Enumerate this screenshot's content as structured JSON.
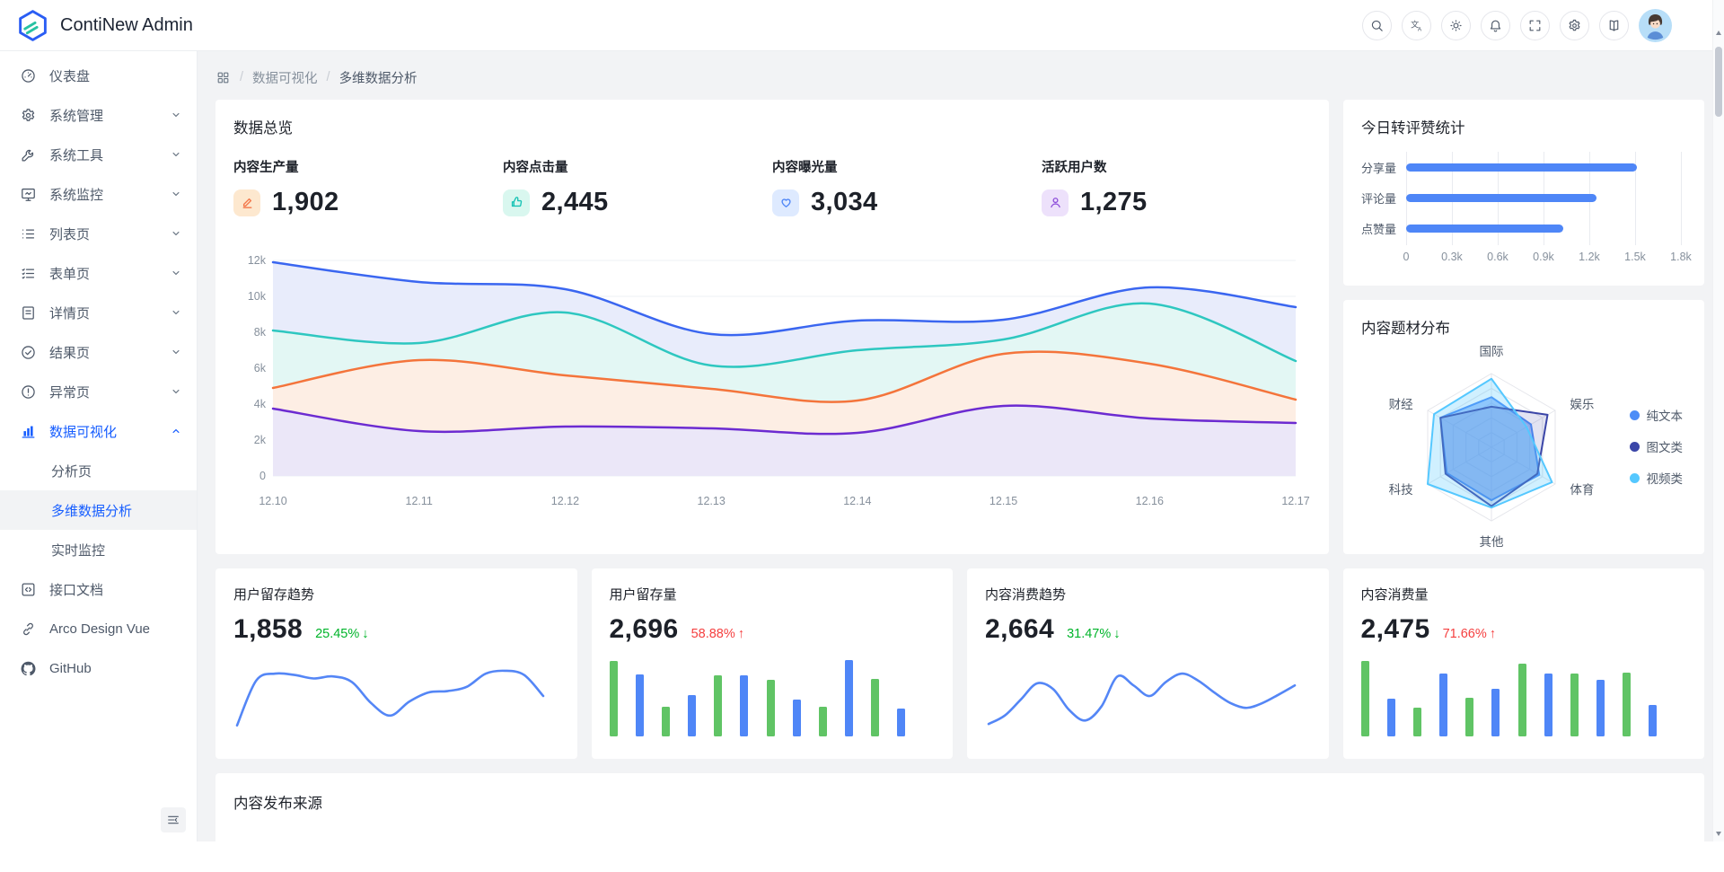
{
  "app": {
    "title": "ContiNew Admin"
  },
  "header": {
    "icons": [
      "search-icon",
      "translate-icon",
      "theme-icon",
      "notifications-icon",
      "fullscreen-icon",
      "settings-icon",
      "docs-icon"
    ]
  },
  "breadcrumb": {
    "icon": "apps-icon",
    "items": [
      "数据可视化",
      "多维数据分析"
    ]
  },
  "sidebar": {
    "items": [
      {
        "key": "dashboard",
        "label": "仪表盘",
        "icon": "dashboard-icon",
        "expandable": false
      },
      {
        "key": "system-management",
        "label": "系统管理",
        "icon": "settings-icon",
        "expandable": true
      },
      {
        "key": "system-tools",
        "label": "系统工具",
        "icon": "tool-icon",
        "expandable": true
      },
      {
        "key": "system-monitor",
        "label": "系统监控",
        "icon": "monitor-icon",
        "expandable": true
      },
      {
        "key": "list-pages",
        "label": "列表页",
        "icon": "list-icon",
        "expandable": true
      },
      {
        "key": "form-pages",
        "label": "表单页",
        "icon": "form-icon",
        "expandable": true
      },
      {
        "key": "detail-pages",
        "label": "详情页",
        "icon": "detail-icon",
        "expandable": true
      },
      {
        "key": "result-pages",
        "label": "结果页",
        "icon": "result-icon",
        "expandable": true
      },
      {
        "key": "exception-pages",
        "label": "异常页",
        "icon": "exception-icon",
        "expandable": true
      },
      {
        "key": "data-visualization",
        "label": "数据可视化",
        "icon": "chart-icon",
        "expandable": true,
        "expanded": true,
        "active": true,
        "children": [
          {
            "key": "analysis",
            "label": "分析页",
            "active": false
          },
          {
            "key": "multi-dimension",
            "label": "多维数据分析",
            "active": true
          },
          {
            "key": "realtime-monitor",
            "label": "实时监控",
            "active": false
          }
        ]
      },
      {
        "key": "api-docs",
        "label": "接口文档",
        "icon": "api-icon",
        "expandable": false
      },
      {
        "key": "arco-design-vue",
        "label": "Arco Design Vue",
        "icon": "link-icon",
        "expandable": false
      },
      {
        "key": "github",
        "label": "GitHub",
        "icon": "github-icon",
        "expandable": false
      }
    ]
  },
  "overview": {
    "title": "数据总览",
    "stats": [
      {
        "label": "内容生产量",
        "value": "1,902",
        "icon": "edit-icon",
        "icon_color": "#f3774b",
        "icon_bg": "#fde8cf"
      },
      {
        "label": "内容点击量",
        "value": "2,445",
        "icon": "thumb-up-icon",
        "icon_color": "#17c3b5",
        "icon_bg": "#d9f7ef"
      },
      {
        "label": "内容曝光量",
        "value": "3,034",
        "icon": "heart-icon",
        "icon_color": "#4e86f7",
        "icon_bg": "#deeaff"
      },
      {
        "label": "活跃用户数",
        "value": "1,275",
        "icon": "user-icon",
        "icon_color": "#8d4eda",
        "icon_bg": "#ede1fb"
      }
    ]
  },
  "trend_cards": [
    {
      "title": "用户留存趋势",
      "value": "1,858",
      "delta": "25.45%",
      "arrow": "↓",
      "delta_color": "#00b42a",
      "spark": "retention-trend"
    },
    {
      "title": "用户留存量",
      "value": "2,696",
      "delta": "58.88%",
      "arrow": "↑",
      "delta_color": "#f53f3f",
      "spark": "retention-volume"
    },
    {
      "title": "内容消费趋势",
      "value": "2,664",
      "delta": "31.47%",
      "arrow": "↓",
      "delta_color": "#00b42a",
      "spark": "consumption-trend"
    },
    {
      "title": "内容消费量",
      "value": "2,475",
      "delta": "71.66%",
      "arrow": "↑",
      "delta_color": "#f53f3f",
      "spark": "consumption-volume"
    }
  ],
  "bottom_card": {
    "title": "内容发布来源"
  },
  "chart_data": [
    {
      "id": "overview-area",
      "type": "area",
      "x": [
        "12.10",
        "12.11",
        "12.12",
        "12.13",
        "12.14",
        "12.15",
        "12.16",
        "12.17"
      ],
      "ylim": [
        0,
        12000
      ],
      "yticks": [
        "12k",
        "10k",
        "8k",
        "6k",
        "4k",
        "2k",
        "0"
      ],
      "grid": true,
      "legend_position": "none",
      "series": [
        {
          "name": "series-blue",
          "color": "#3a66f0",
          "fill": "#e8ecfb",
          "values": [
            11900,
            10800,
            10400,
            7900,
            8650,
            8700,
            10500,
            9400
          ]
        },
        {
          "name": "series-teal",
          "color": "#2ec7c0",
          "fill": "#e3f7f4",
          "values": [
            8100,
            7400,
            9100,
            6150,
            7000,
            7600,
            9600,
            6400
          ]
        },
        {
          "name": "series-orange",
          "color": "#f4743b",
          "fill": "#fdeee4",
          "values": [
            4900,
            6450,
            5600,
            4850,
            4200,
            6800,
            6250,
            4250
          ]
        },
        {
          "name": "series-purple",
          "color": "#6c2bd1",
          "fill": "#ebe7f8",
          "values": [
            3750,
            2500,
            2750,
            2650,
            2400,
            3900,
            3200,
            2950
          ]
        }
      ]
    },
    {
      "id": "daily-share-bar",
      "type": "bar",
      "title": "今日转评赞统计",
      "orientation": "horizontal",
      "categories": [
        "分享量",
        "评论量",
        "点赞量"
      ],
      "values": [
        1510,
        1245,
        1030
      ],
      "xlim": [
        0,
        1800
      ],
      "xticks": [
        "0",
        "0.3k",
        "0.6k",
        "0.9k",
        "1.2k",
        "1.5k",
        "1.8k"
      ],
      "bar_color": "#4e86f7",
      "grid": true
    },
    {
      "id": "topic-radar",
      "type": "radar",
      "title": "内容题材分布",
      "axes": [
        "国际",
        "娱乐",
        "体育",
        "其他",
        "科技",
        "财经"
      ],
      "max": 100,
      "legend_position": "right",
      "series": [
        {
          "name": "纯文本",
          "color": "#4d8df7",
          "fill_opacity": 0.5,
          "values": [
            68,
            62,
            75,
            72,
            70,
            80
          ]
        },
        {
          "name": "图文类",
          "color": "#3b46a8",
          "fill_opacity": 0.15,
          "values": [
            55,
            88,
            72,
            80,
            72,
            80
          ]
        },
        {
          "name": "视频类",
          "color": "#55c8ff",
          "fill_opacity": 0.28,
          "values": [
            93,
            55,
            95,
            82,
            100,
            90
          ]
        }
      ]
    },
    {
      "id": "retention-trend",
      "type": "line",
      "color": "#5486f6",
      "points": [
        8,
        72,
        82,
        80,
        75,
        78,
        70,
        40,
        22,
        42,
        55,
        57,
        63,
        82,
        86,
        80,
        50
      ]
    },
    {
      "id": "retention-volume",
      "type": "bar",
      "colors": [
        "#60c465",
        "#4f86f7"
      ],
      "values": [
        95,
        78,
        37,
        52,
        77,
        77,
        72,
        47,
        38,
        97,
        73,
        35
      ]
    },
    {
      "id": "consumption-trend",
      "type": "line",
      "color": "#5486f6",
      "points": [
        10,
        22,
        45,
        68,
        60,
        30,
        15,
        35,
        78,
        65,
        50,
        70,
        82,
        72,
        55,
        40,
        33,
        40,
        52,
        65
      ]
    },
    {
      "id": "consumption-volume",
      "type": "bar",
      "colors": [
        "#60c465",
        "#4f86f7"
      ],
      "values": [
        95,
        48,
        36,
        80,
        49,
        60,
        92,
        80,
        79,
        72,
        81,
        40
      ]
    }
  ]
}
